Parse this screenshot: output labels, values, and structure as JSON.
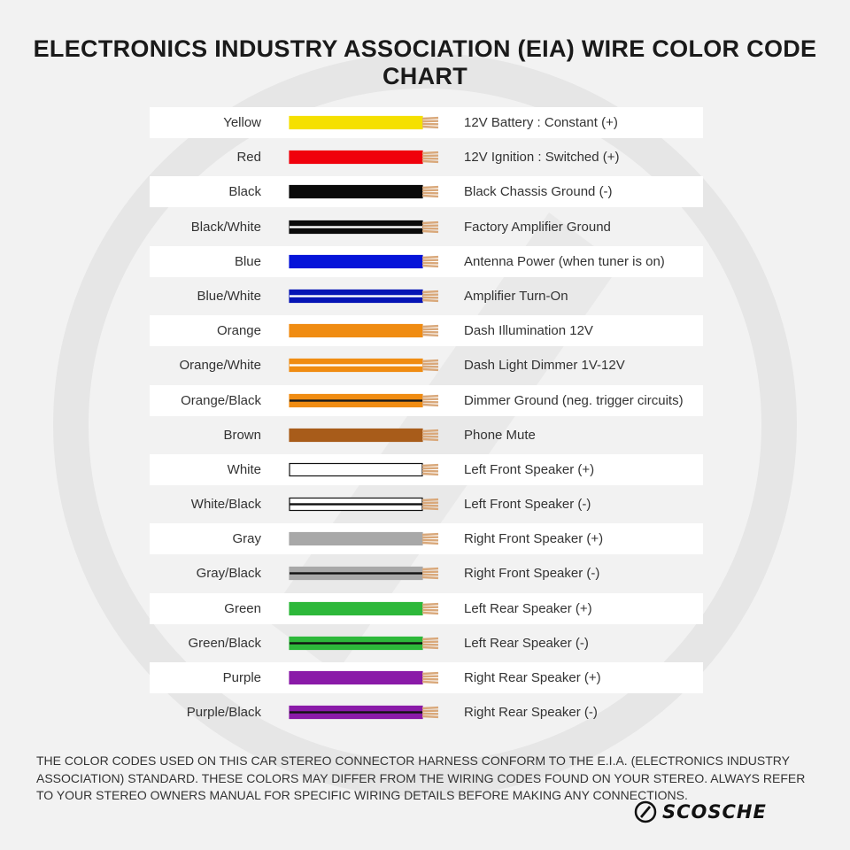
{
  "title": "ELECTRONICS INDUSTRY ASSOCIATION (EIA) WIRE COLOR CODE CHART",
  "wires": [
    {
      "name": "Yellow",
      "description": "12V Battery : Constant (+)",
      "base": "#f5e000",
      "stripe": ""
    },
    {
      "name": "Red",
      "description": "12V Ignition : Switched (+)",
      "base": "#f0000c",
      "stripe": ""
    },
    {
      "name": "Black",
      "description": "Black Chassis Ground (-)",
      "base": "#0a0a0a",
      "stripe": ""
    },
    {
      "name": "Black/White",
      "description": "Factory Amplifier Ground",
      "base": "#0a0a0a",
      "stripe": "#ffffff"
    },
    {
      "name": "Blue",
      "description": "Antenna Power (when tuner is on)",
      "base": "#0514d9",
      "stripe": ""
    },
    {
      "name": "Blue/White",
      "description": "Amplifier Turn-On",
      "base": "#0514b5",
      "stripe": "#ffffff"
    },
    {
      "name": "Orange",
      "description": "Dash Illumination 12V",
      "base": "#f08c12",
      "stripe": ""
    },
    {
      "name": "Orange/White",
      "description": "Dash Light Dimmer 1V-12V",
      "base": "#f08c12",
      "stripe": "#ffffff"
    },
    {
      "name": "Orange/Black",
      "description": "Dimmer Ground (neg. trigger circuits)",
      "base": "#f08c12",
      "stripe": "#1a1a1a"
    },
    {
      "name": "Brown",
      "description": "Phone Mute",
      "base": "#a85c1a",
      "stripe": ""
    },
    {
      "name": "White",
      "description": "Left Front Speaker (+)",
      "base": "#ffffff",
      "stripe": ""
    },
    {
      "name": "White/Black",
      "description": "Left Front Speaker (-)",
      "base": "#ffffff",
      "stripe": "#111111"
    },
    {
      "name": "Gray",
      "description": "Right Front Speaker (+)",
      "base": "#a8a8a8",
      "stripe": ""
    },
    {
      "name": "Gray/Black",
      "description": "Right Front Speaker (-)",
      "base": "#a8a8a8",
      "stripe": "#111111"
    },
    {
      "name": "Green",
      "description": "Left Rear Speaker (+)",
      "base": "#2db83a",
      "stripe": ""
    },
    {
      "name": "Green/Black",
      "description": "Left Rear Speaker (-)",
      "base": "#2db83a",
      "stripe": "#111111"
    },
    {
      "name": "Purple",
      "description": "Right Rear Speaker (+)",
      "base": "#8a1aa8",
      "stripe": ""
    },
    {
      "name": "Purple/Black",
      "description": "Right Rear Speaker (-)",
      "base": "#8a1aa8",
      "stripe": "#111111"
    }
  ],
  "footer": "THE COLOR CODES USED ON THIS CAR STEREO CONNECTOR HARNESS CONFORM TO THE E.I.A. (ELECTRONICS INDUSTRY ASSOCIATION) STANDARD. THESE COLORS MAY DIFFER FROM THE WIRING CODES FOUND ON YOUR STEREO. ALWAYS REFER TO YOUR STEREO OWNERS MANUAL FOR SPECIFIC WIRING DETAILS BEFORE MAKING ANY CONNECTIONS.",
  "logo": {
    "text": "SCOSCHE",
    "icon": "scosche-logo-icon"
  },
  "copper_color": "#d9a87a"
}
